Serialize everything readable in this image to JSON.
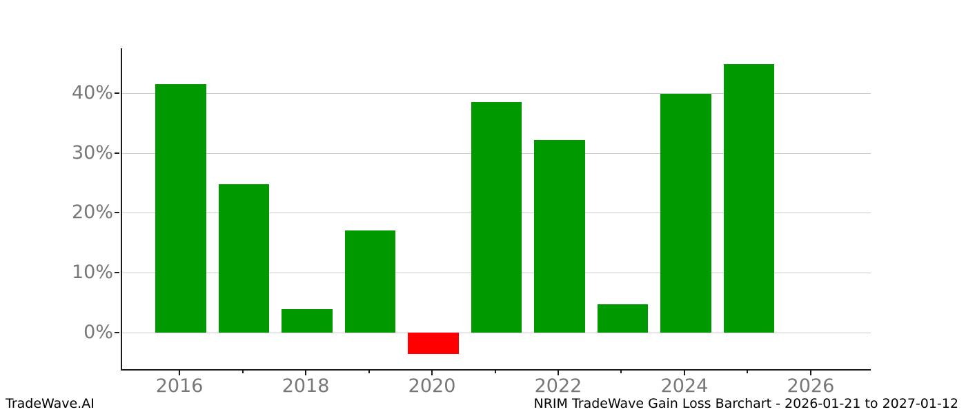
{
  "watermark": "TradeWave.AI",
  "chart_data": {
    "type": "bar",
    "title": "NRIM TradeWave Gain Loss Barchart - 2026-01-21 to 2027-01-12",
    "categories": [
      "2016",
      "2017",
      "2018",
      "2019",
      "2020",
      "2021",
      "2022",
      "2023",
      "2024",
      "2025"
    ],
    "values": [
      41.5,
      24.8,
      3.9,
      17.0,
      -3.6,
      38.5,
      32.2,
      4.7,
      39.9,
      44.9
    ],
    "xlabel": "",
    "ylabel": "",
    "yticks": [
      0,
      10,
      20,
      30,
      40
    ],
    "ytick_labels": [
      "0%",
      "10%",
      "20%",
      "30%",
      "40%"
    ],
    "xticks_major": [
      2016,
      2018,
      2020,
      2022,
      2024,
      2026
    ],
    "xtick_labels": [
      "2016",
      "2018",
      "2020",
      "2022",
      "2024",
      "2026"
    ],
    "xticks_minor": [
      2017,
      2019,
      2021,
      2023,
      2025
    ],
    "xlim": [
      2015.07,
      2026.93
    ],
    "ylim": [
      -6.15,
      47.5
    ],
    "bar_width": 0.8,
    "grid": true,
    "legend": false,
    "colors": {
      "positive": "#009a00",
      "negative": "#ff0000",
      "gridline": "#cccccc",
      "spine": "#1a1a1a",
      "tick_label": "#777777",
      "text": "#000000"
    }
  }
}
